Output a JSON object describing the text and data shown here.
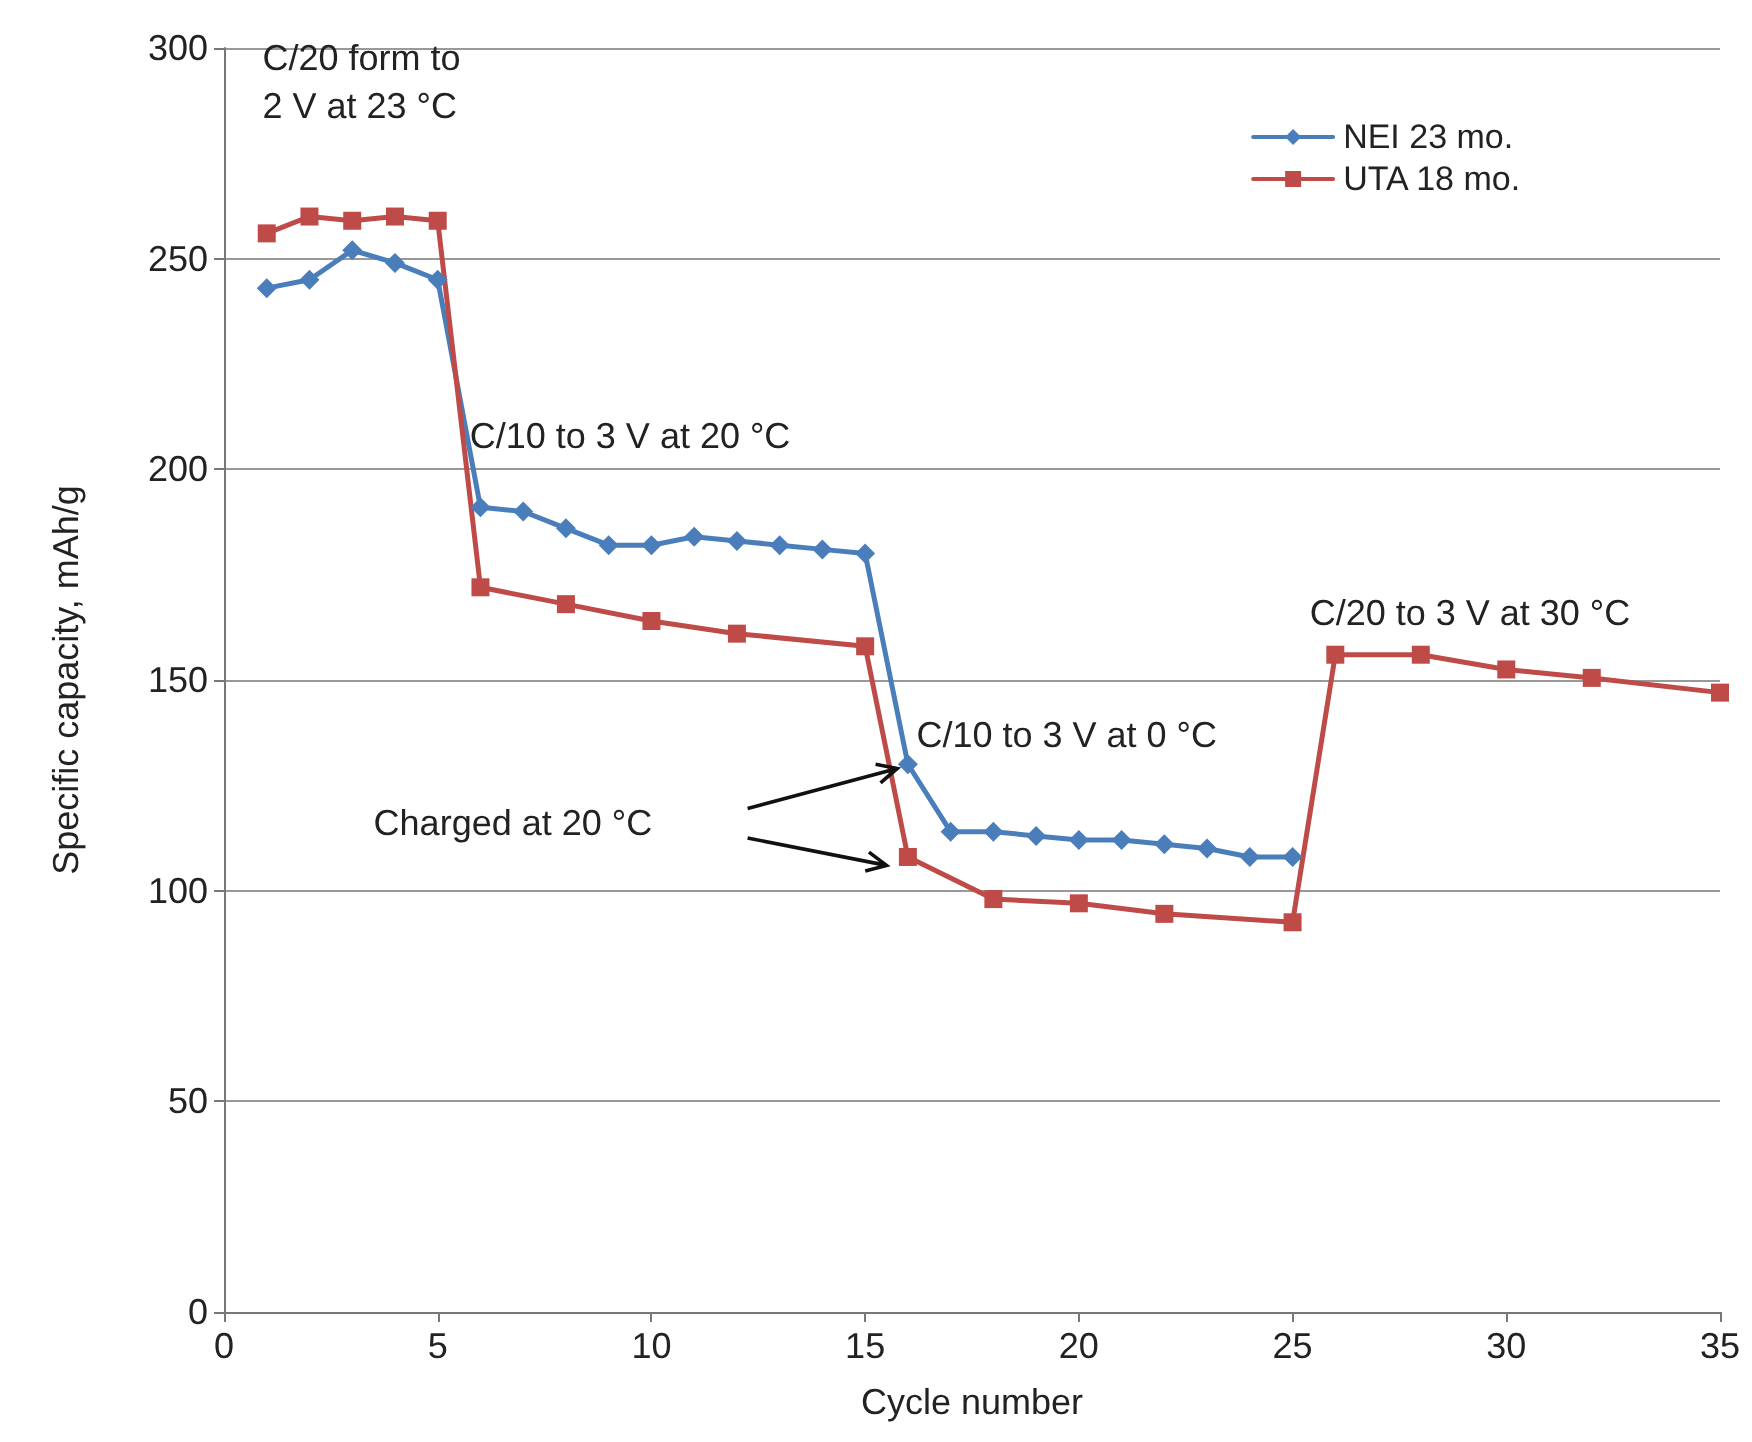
{
  "chart_data": {
    "type": "line",
    "xlabel": "Cycle number",
    "ylabel": "Specific capacity, mAh/g",
    "xlim": [
      0,
      35
    ],
    "xticks": [
      0,
      5,
      10,
      15,
      20,
      25,
      30,
      35
    ],
    "ylim": [
      0,
      300
    ],
    "yticks": [
      0,
      50,
      100,
      150,
      200,
      250,
      300
    ],
    "grid": "y",
    "legend": "top right",
    "series": [
      {
        "name": "NEI 23 mo.",
        "color": "#4a7ebb",
        "marker": "diamond",
        "x": [
          1,
          2,
          3,
          4,
          5,
          6,
          7,
          8,
          9,
          10,
          11,
          12,
          13,
          14,
          15,
          16,
          17,
          18,
          19,
          20,
          21,
          22,
          23,
          24,
          25
        ],
        "values": [
          243,
          245,
          252,
          249,
          245,
          191,
          190,
          186,
          182,
          182,
          184,
          183,
          182,
          181,
          180,
          130,
          114,
          114,
          113,
          112,
          112,
          111,
          110,
          108,
          108
        ]
      },
      {
        "name": "UTA 18 mo.",
        "color": "#be4b48",
        "marker": "square",
        "x": [
          1,
          2,
          3,
          4,
          5,
          6,
          8,
          10,
          12,
          15,
          16,
          18,
          20,
          22,
          25,
          26,
          28,
          30,
          32,
          35
        ],
        "values": [
          256,
          260,
          259,
          260,
          259,
          172,
          168,
          164,
          161,
          158,
          108,
          98,
          97,
          94.5,
          92.5,
          156,
          156,
          152.5,
          150.5,
          147
        ]
      }
    ],
    "annotations": [
      "C/20 form to\n2 V at 23 °C",
      "C/10 to 3 V at 20 °C",
      "C/10 to 3 V at 0 °C",
      "C/20 to 3 V at 30 °C",
      "Charged at 20 °C"
    ]
  }
}
